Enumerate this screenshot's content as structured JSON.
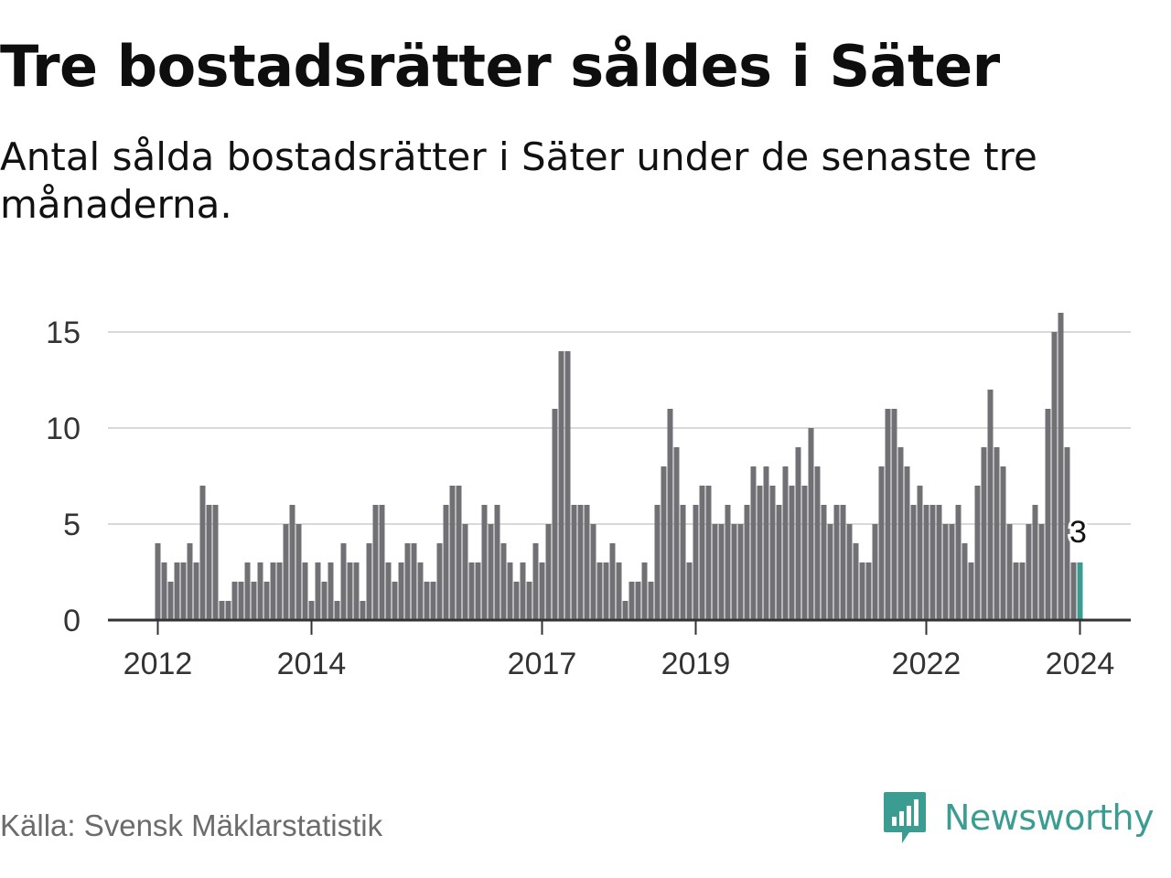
{
  "title": "Tre bostadsrätter såldes i Säter",
  "subtitle": "Antal sålda bostadsrätter i Säter under de senaste tre månaderna.",
  "source": "Källa: Svensk Mäklarstatistik",
  "brand": {
    "name": "Newsworthy",
    "logo_icon": "bar-chart-speech-bubble-icon"
  },
  "colors": {
    "bar": "#707075",
    "highlight": "#3a9b8f",
    "grid": "#d9d9d9",
    "axis": "#333333",
    "brand": "#3b9c91"
  },
  "chart_data": {
    "type": "bar",
    "title": "Tre bostadsrätter såldes i Säter",
    "xlabel": "",
    "ylabel": "",
    "ylim": [
      0,
      16
    ],
    "yticks": [
      0,
      5,
      10,
      15
    ],
    "grid": true,
    "x_start": "2012-01",
    "frequency": "monthly",
    "xtick_labels": [
      {
        "label": "2012",
        "index": 0
      },
      {
        "label": "2014",
        "index": 24
      },
      {
        "label": "2017",
        "index": 60
      },
      {
        "label": "2019",
        "index": 84
      },
      {
        "label": "2022",
        "index": 120
      },
      {
        "label": "2024",
        "index": 144
      }
    ],
    "values": [
      4,
      3,
      2,
      3,
      3,
      4,
      3,
      7,
      6,
      6,
      1,
      1,
      2,
      2,
      3,
      2,
      3,
      2,
      3,
      3,
      5,
      6,
      5,
      3,
      1,
      3,
      2,
      3,
      1,
      4,
      3,
      3,
      1,
      4,
      6,
      6,
      3,
      2,
      3,
      4,
      4,
      3,
      2,
      2,
      4,
      6,
      7,
      7,
      5,
      3,
      3,
      6,
      5,
      6,
      4,
      3,
      2,
      3,
      2,
      4,
      3,
      5,
      11,
      14,
      14,
      6,
      6,
      6,
      5,
      3,
      3,
      4,
      3,
      1,
      2,
      2,
      3,
      2,
      6,
      8,
      11,
      9,
      6,
      3,
      6,
      7,
      7,
      5,
      5,
      6,
      5,
      5,
      6,
      8,
      7,
      8,
      7,
      6,
      8,
      7,
      9,
      7,
      10,
      8,
      6,
      5,
      6,
      6,
      5,
      4,
      3,
      3,
      5,
      8,
      11,
      11,
      9,
      8,
      6,
      7,
      6,
      6,
      6,
      5,
      5,
      6,
      4,
      3,
      7,
      9,
      12,
      9,
      8,
      5,
      3,
      3,
      5,
      6,
      5,
      11,
      15,
      16,
      9,
      3,
      3
    ],
    "highlight_index": 144,
    "highlight_label": "3"
  }
}
